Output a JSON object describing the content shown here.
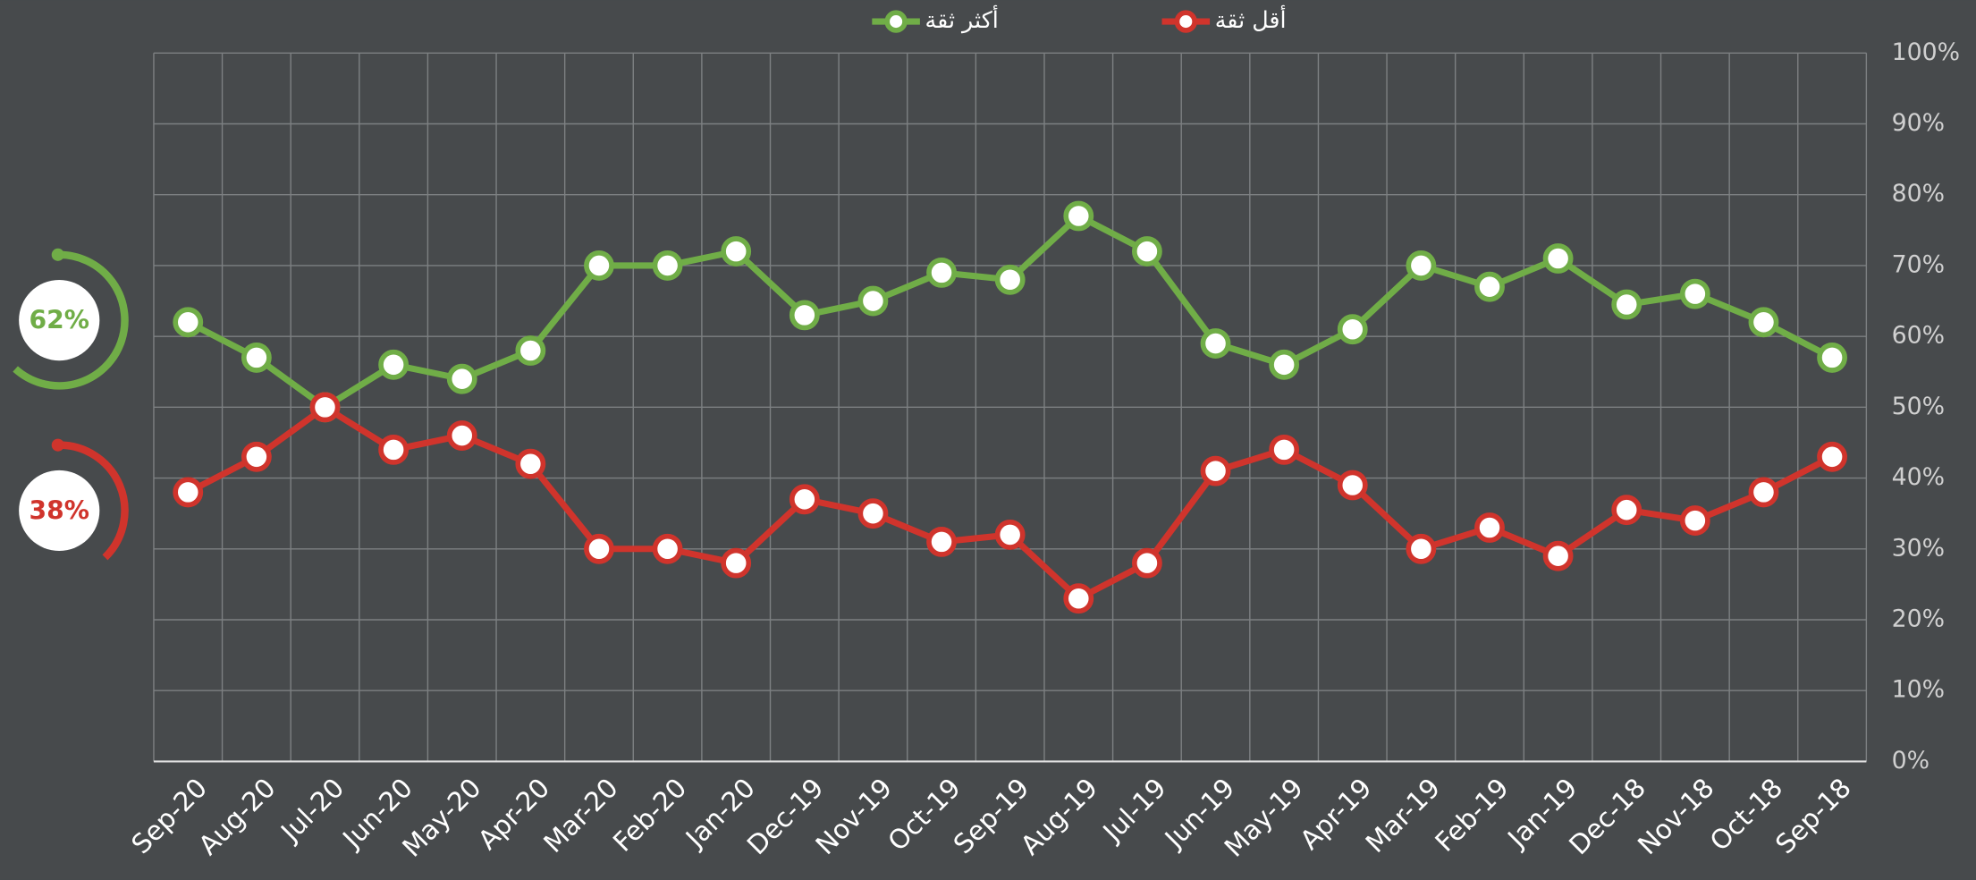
{
  "chart_data": {
    "type": "line",
    "categories": [
      "Sep-20",
      "Aug-20",
      "Jul-20",
      "Jun-20",
      "May-20",
      "Apr-20",
      "Mar-20",
      "Feb-20",
      "Jan-20",
      "Dec-19",
      "Nov-19",
      "Oct-19",
      "Sep-19",
      "Aug-19",
      "Jul-19",
      "Jun-19",
      "May-19",
      "Apr-19",
      "Mar-19",
      "Feb-19",
      "Jan-19",
      "Dec-18",
      "Nov-18",
      "Oct-18",
      "Sep-18"
    ],
    "series": [
      {
        "name": "أكثر ثقة",
        "color": "#70ad47",
        "values": [
          62,
          57,
          50,
          56,
          54,
          58,
          70,
          70,
          72,
          63,
          65,
          69,
          68,
          77,
          72,
          59,
          56,
          61,
          70,
          67,
          71,
          64.5,
          66,
          62,
          57
        ]
      },
      {
        "name": "أقل ثقة",
        "color": "#d0342c",
        "values": [
          38,
          43,
          50,
          44,
          46,
          42,
          30,
          30,
          28,
          37,
          35,
          31,
          32,
          23,
          28,
          41,
          44,
          39,
          30,
          33,
          29,
          35.5,
          34,
          38,
          43
        ]
      }
    ],
    "summary": {
      "values": [
        62,
        38
      ],
      "value_labels": [
        "62%",
        "38%"
      ],
      "colors": [
        "#70ad47",
        "#d0342c"
      ]
    },
    "ylim": [
      0,
      100
    ],
    "yticks": [
      {
        "value": 0,
        "label": "0%"
      },
      {
        "value": 10,
        "label": "10%"
      },
      {
        "value": 20,
        "label": "20%"
      },
      {
        "value": 30,
        "label": "30%"
      },
      {
        "value": 40,
        "label": "40%"
      },
      {
        "value": 50,
        "label": "50%"
      },
      {
        "value": 60,
        "label": "60%"
      },
      {
        "value": 70,
        "label": "70%"
      },
      {
        "value": 80,
        "label": "80%"
      },
      {
        "value": 90,
        "label": "90%"
      },
      {
        "value": 100,
        "label": "100%"
      }
    ],
    "grid": true,
    "legend": "top"
  }
}
